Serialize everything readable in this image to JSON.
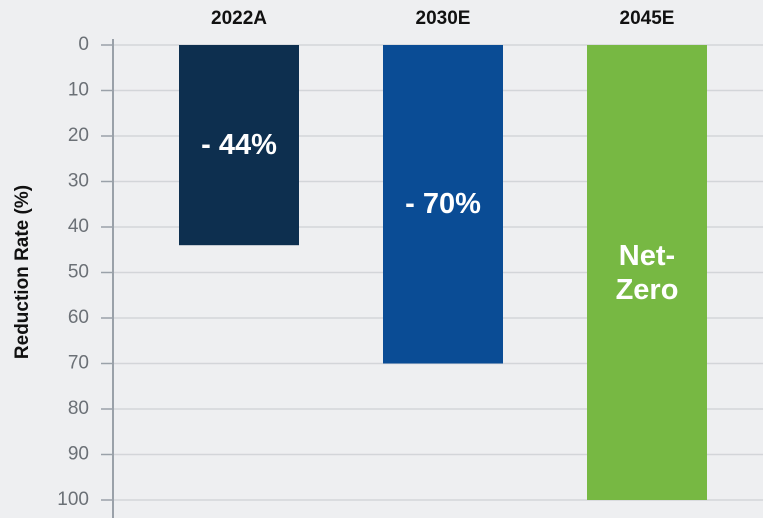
{
  "chart_data": {
    "type": "bar",
    "categories": [
      "2022A",
      "2030E",
      "2045E"
    ],
    "values": [
      44,
      70,
      100
    ],
    "value_labels": [
      "- 44%",
      "- 70%",
      "Net-Zero"
    ],
    "colors": [
      "#0d2f4f",
      "#0a4c95",
      "#77b843"
    ],
    "y_label": "Reduction Rate (%)",
    "ylim": [
      0,
      100
    ],
    "yticks": [
      0,
      10,
      20,
      30,
      40,
      50,
      60,
      70,
      80,
      90,
      100
    ],
    "y_inverted": true,
    "grid": true
  }
}
